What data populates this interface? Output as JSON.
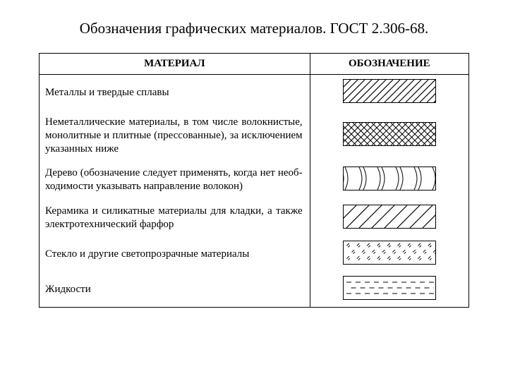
{
  "title": "Обозначения графических материалов. ГОСТ 2.306-68.",
  "headers": {
    "col1": "МАТЕРИАЛ",
    "col2": "ОБОЗНАЧЕНИЕ"
  },
  "swatch": {
    "w": 130,
    "h": 32,
    "stroke": "#000000",
    "bg": "#ffffff"
  },
  "rows": [
    {
      "text": "Металлы и твердые сплавы",
      "pattern": "hatch45",
      "hatch45": {
        "spacing": 10,
        "stroke_width": 1.2,
        "angle_deg": 45
      }
    },
    {
      "text": "Неметаллические материалы, в том числе волокнистые, монолитные и плитные (прессованные), за исключением указанных ниже",
      "pattern": "crosshatch",
      "crosshatch": {
        "spacing": 9,
        "stroke_width": 1.0
      }
    },
    {
      "text": "Дерево (обозначение следует применять, когда нет необ-ходимости указывать направление волокон)",
      "pattern": "wood",
      "wood": {
        "arc_count": 5,
        "stroke_width": 1.0
      }
    },
    {
      "text": "Керамика и силикатные материалы для кладки, а также электротехнический фарфор",
      "pattern": "hatch45_sparse",
      "hatch45_sparse": {
        "spacing": 18,
        "stroke_width": 1.2,
        "angle_deg": 45
      }
    },
    {
      "text": "Стекло и другие светопрозрачные материалы",
      "pattern": "glass",
      "glass": {
        "rows": 3,
        "cols": 9,
        "tick_len": 5,
        "stroke_width": 1.0
      }
    },
    {
      "text": "Жидкости",
      "pattern": "liquid",
      "liquid": {
        "rows": 3,
        "dash": 7,
        "gap": 6,
        "stroke_width": 1.0
      }
    }
  ],
  "colors": {
    "text": "#000000",
    "border": "#000000",
    "background": "#ffffff"
  },
  "fontsizes": {
    "title": 21,
    "header": 15,
    "body": 15
  }
}
